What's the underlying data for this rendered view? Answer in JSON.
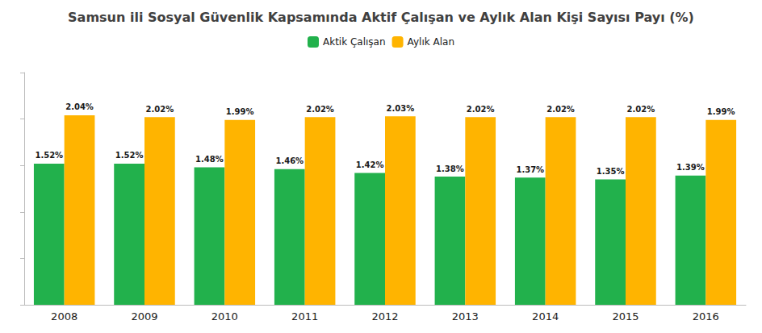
{
  "chart_data": {
    "type": "bar",
    "title": "Samsun ili Sosyal Güvenlik Kapsamında Aktif Çalışan ve Aylık Alan Kişi Sayısı Payı (%)",
    "categories": [
      "2008",
      "2009",
      "2010",
      "2011",
      "2012",
      "2013",
      "2014",
      "2015",
      "2016"
    ],
    "series": [
      {
        "name": "Aktik Çalışan",
        "color": "#22b14c",
        "values": [
          1.52,
          1.52,
          1.48,
          1.46,
          1.42,
          1.38,
          1.37,
          1.35,
          1.39
        ],
        "value_labels": [
          "1.52%",
          "1.52%",
          "1.48%",
          "1.46%",
          "1.42%",
          "1.38%",
          "1.37%",
          "1.35%",
          "1.39%"
        ]
      },
      {
        "name": "Aylık Alan",
        "color": "#ffb400",
        "values": [
          2.04,
          2.02,
          1.99,
          2.02,
          2.03,
          2.02,
          2.02,
          2.02,
          1.99
        ],
        "value_labels": [
          "2.04%",
          "2.02%",
          "1.99%",
          "2.02%",
          "2.03%",
          "2.02%",
          "2.02%",
          "2.02%",
          "1.99%"
        ]
      }
    ],
    "ylim": [
      0,
      2.5
    ],
    "yticks": [
      0,
      0.5,
      1,
      1.5,
      2,
      2.5
    ],
    "grid": false,
    "legend": "top",
    "data_labels": true,
    "tick_labels": "x"
  }
}
